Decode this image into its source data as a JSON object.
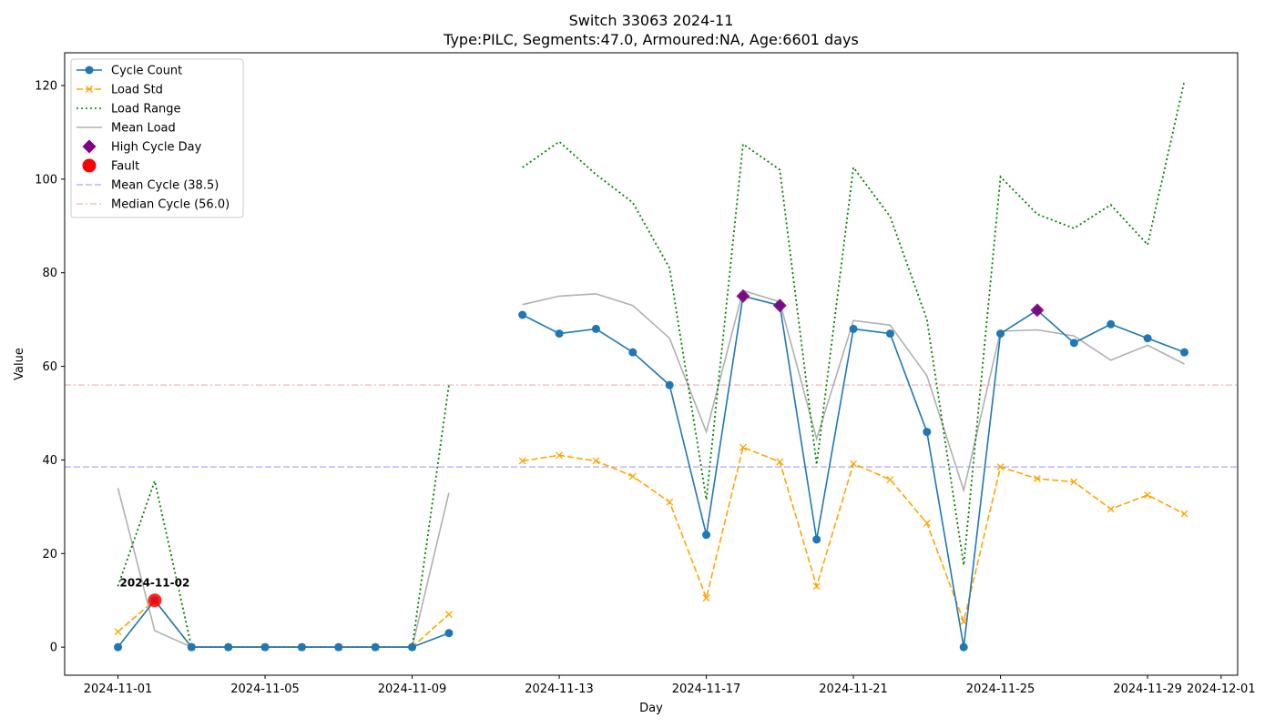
{
  "chart_data": {
    "type": "line",
    "title": "Switch 33063 2024-11",
    "subtitle": "Type:PILC, Segments:47.0, Armoured:NA, Age:6601 days",
    "xlabel": "Day",
    "ylabel": "Value",
    "xlim": [
      -1.45,
      30.45
    ],
    "ylim": [
      -6,
      127
    ],
    "x_tick_labels": [
      "2024-11-01",
      "2024-11-05",
      "2024-11-09",
      "2024-11-13",
      "2024-11-17",
      "2024-11-21",
      "2024-11-25",
      "2024-11-29",
      "2024-12-01"
    ],
    "x_tick_positions": [
      0,
      4,
      8,
      12,
      16,
      20,
      24,
      28,
      30
    ],
    "y_ticks": [
      0,
      20,
      40,
      60,
      80,
      100,
      120
    ],
    "days": [
      "2024-11-01",
      "2024-11-02",
      "2024-11-03",
      "2024-11-04",
      "2024-11-05",
      "2024-11-06",
      "2024-11-07",
      "2024-11-08",
      "2024-11-09",
      "2024-11-10",
      "2024-11-11",
      "2024-11-12",
      "2024-11-13",
      "2024-11-14",
      "2024-11-15",
      "2024-11-16",
      "2024-11-17",
      "2024-11-18",
      "2024-11-19",
      "2024-11-20",
      "2024-11-21",
      "2024-11-22",
      "2024-11-23",
      "2024-11-24",
      "2024-11-25",
      "2024-11-26",
      "2024-11-27",
      "2024-11-28",
      "2024-11-29",
      "2024-11-30"
    ],
    "series": [
      {
        "name": "Cycle Count",
        "color": "#1f77b4",
        "style": "solid",
        "marker": "o",
        "values": [
          0,
          10,
          0,
          0,
          0,
          0,
          0,
          0,
          0,
          3,
          null,
          71,
          67,
          68,
          63,
          56,
          24,
          75,
          73,
          23,
          68,
          67,
          46,
          0,
          67,
          72,
          65,
          69,
          66,
          63
        ]
      },
      {
        "name": "Load Std",
        "color": "#ffa500",
        "style": "dashed",
        "marker": "x",
        "values": [
          3.3,
          10,
          0,
          0,
          0,
          0,
          0,
          0,
          0,
          7,
          null,
          39.8,
          41,
          39.8,
          36.5,
          31,
          10.5,
          42.7,
          39.6,
          13,
          39.2,
          35.8,
          26.5,
          5.5,
          38.5,
          36,
          35.3,
          29.5,
          32.5,
          28.5
        ]
      },
      {
        "name": "Load Range",
        "color": "#008000",
        "style": "dotted",
        "marker": "",
        "values": [
          13,
          35.5,
          0,
          0,
          0,
          0,
          0,
          0,
          0,
          56,
          null,
          102.5,
          108,
          101,
          95,
          81,
          31.5,
          107.5,
          102,
          39,
          102.5,
          92,
          70,
          17.5,
          100.5,
          92.5,
          89.5,
          94.5,
          86,
          121
        ]
      },
      {
        "name": "Mean Load",
        "color": "#b0b0b0",
        "style": "solid",
        "marker": "",
        "values": [
          34,
          3.5,
          0,
          0,
          0,
          0,
          0,
          0,
          0,
          33,
          null,
          73.2,
          75,
          75.5,
          73,
          66,
          46,
          76.2,
          73.8,
          44.5,
          69.8,
          68.8,
          58,
          33.5,
          67.5,
          67.8,
          66.5,
          61.3,
          64.5,
          60.5
        ]
      }
    ],
    "high_cycle_days": {
      "name": "High Cycle Day",
      "color": "#800080",
      "x": [
        17,
        18,
        25
      ],
      "y": [
        75,
        73,
        72
      ]
    },
    "faults": {
      "name": "Fault",
      "color": "#ff0000",
      "x": [
        1
      ],
      "y": [
        10
      ],
      "labels": [
        "2024-11-02"
      ]
    },
    "hlines": [
      {
        "name": "Mean Cycle (38.5)",
        "value": 38.5,
        "color": "#9999ff"
      },
      {
        "name": "Median Cycle (56.0)",
        "value": 56.0,
        "color": "#f4a8a8"
      }
    ],
    "legend_position": "upper-left"
  }
}
